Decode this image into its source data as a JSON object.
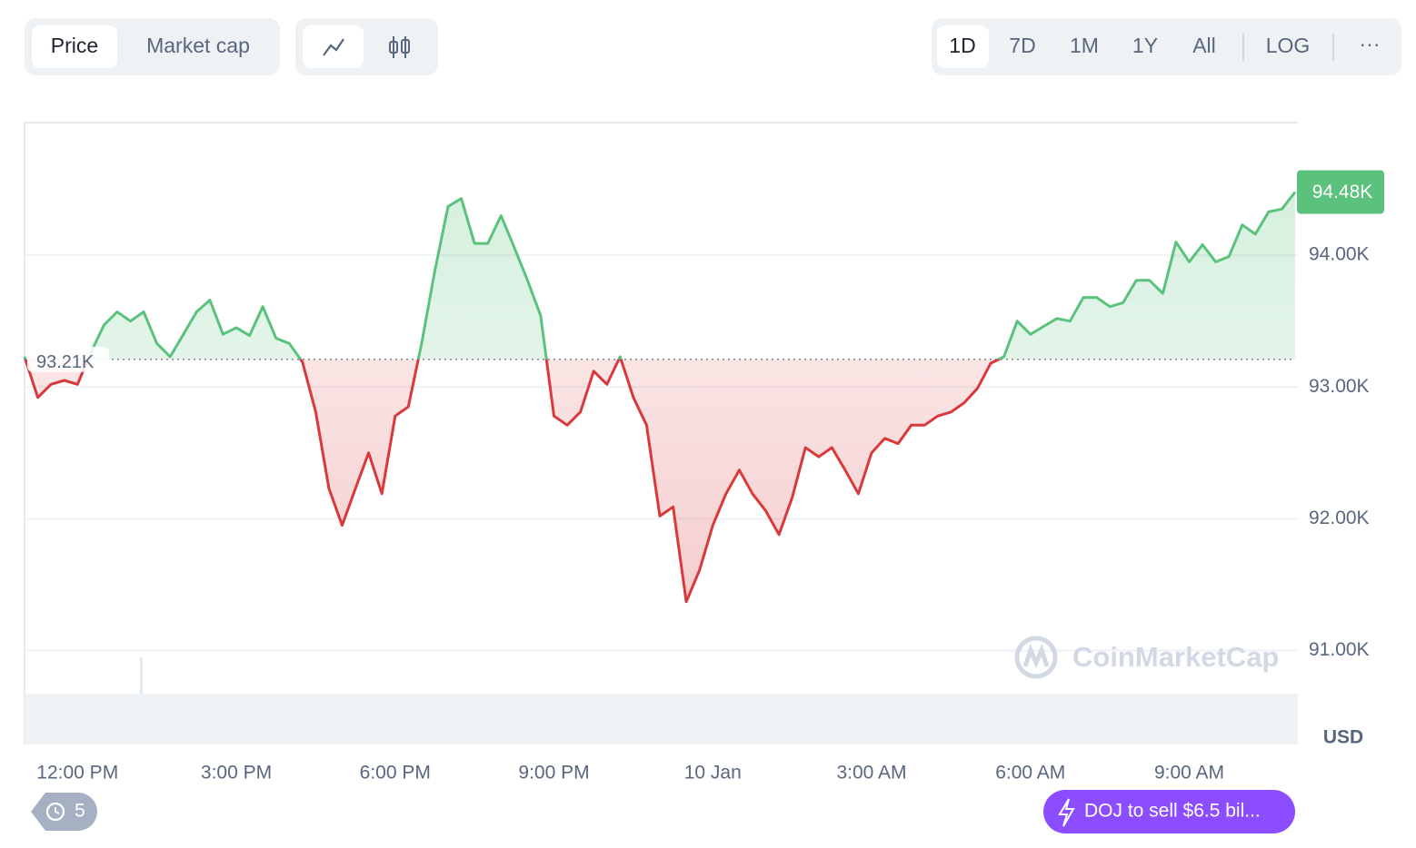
{
  "ui": {
    "metric_tabs": [
      "Price",
      "Market cap"
    ],
    "range_tabs": [
      "1D",
      "7D",
      "1M",
      "1Y",
      "All"
    ],
    "log_button": "LOG",
    "more_button": "···",
    "currency": "USD",
    "watermark": "CoinMarketCap",
    "history_count": "5",
    "news": "DOJ to sell $6.5 bil..."
  },
  "chart_data": {
    "type": "line",
    "categories": [
      null,
      null,
      null,
      null,
      "12:00 PM",
      null,
      null,
      null,
      null,
      null,
      null,
      null,
      null,
      null,
      null,
      null,
      "3:00 PM",
      null,
      null,
      null,
      null,
      null,
      null,
      null,
      null,
      null,
      null,
      null,
      "6:00 PM",
      null,
      null,
      null,
      null,
      null,
      null,
      null,
      null,
      null,
      null,
      null,
      "9:00 PM",
      null,
      null,
      null,
      null,
      null,
      null,
      null,
      null,
      null,
      null,
      null,
      "10 Jan",
      null,
      null,
      null,
      null,
      null,
      null,
      null,
      null,
      null,
      null,
      null,
      "3:00 AM",
      null,
      null,
      null,
      null,
      null,
      null,
      null,
      null,
      null,
      null,
      null,
      "6:00 AM",
      null,
      null,
      null,
      null,
      null,
      null,
      null,
      null,
      null,
      null,
      null,
      "9:00 AM",
      null,
      null,
      null,
      null,
      null,
      null,
      null,
      null
    ],
    "values": [
      93.23,
      92.92,
      93.02,
      93.05,
      93.02,
      93.26,
      93.47,
      93.57,
      93.5,
      93.57,
      93.33,
      93.23,
      93.4,
      93.57,
      93.66,
      93.4,
      93.45,
      93.39,
      93.61,
      93.37,
      93.33,
      93.19,
      92.81,
      92.23,
      91.95,
      92.23,
      92.5,
      92.19,
      92.78,
      92.85,
      93.33,
      93.88,
      94.37,
      94.43,
      94.09,
      94.09,
      94.3,
      94.06,
      93.81,
      93.54,
      92.78,
      92.71,
      92.81,
      93.12,
      93.02,
      93.23,
      92.92,
      92.71,
      92.02,
      92.09,
      91.37,
      91.61,
      91.95,
      92.19,
      92.37,
      92.19,
      92.06,
      91.88,
      92.16,
      92.54,
      92.47,
      92.54,
      92.37,
      92.19,
      92.5,
      92.61,
      92.57,
      92.71,
      92.71,
      92.78,
      92.81,
      92.88,
      92.99,
      93.18,
      93.23,
      93.5,
      93.4,
      93.46,
      93.52,
      93.5,
      93.68,
      93.68,
      93.61,
      93.64,
      93.81,
      93.81,
      93.71,
      94.1,
      93.95,
      94.08,
      93.95,
      93.99,
      94.23,
      94.16,
      94.33,
      94.35,
      94.48
    ],
    "last_value_label": "94.48K",
    "baseline": 93.21,
    "baseline_label": "93.21K",
    "color_up": "#5bc27e",
    "color_down": "#d9393b",
    "ylim": [
      90.7,
      95.0
    ],
    "yticks": [
      {
        "value": 91,
        "label": "91.00K"
      },
      {
        "value": 92,
        "label": "92.00K"
      },
      {
        "value": 93,
        "label": "93.00K"
      },
      {
        "value": 94,
        "label": "94.00K"
      }
    ],
    "grid": true
  }
}
